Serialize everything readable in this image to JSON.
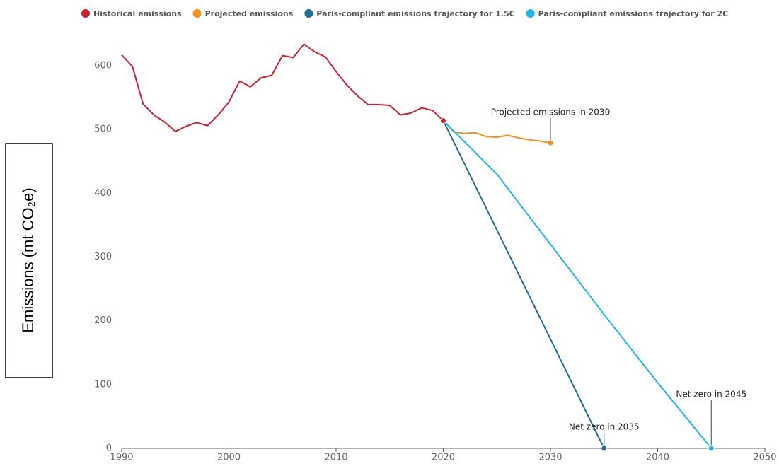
{
  "chart_data": {
    "type": "line",
    "y_label": "Emissions (mt CO₂e)",
    "xlim": [
      1990,
      2050
    ],
    "xticks": [
      1990,
      2000,
      2010,
      2020,
      2030,
      2040,
      2050
    ],
    "ylim": [
      0,
      640
    ],
    "yticks": [
      0,
      100,
      200,
      300,
      400,
      500,
      600
    ],
    "grid": false,
    "legend": "top",
    "series": [
      {
        "name": "Historical emissions",
        "color": "#d0202e",
        "x": [
          1990,
          1991,
          1992,
          1993,
          1994,
          1995,
          1996,
          1997,
          1998,
          1999,
          2000,
          2001,
          2002,
          2003,
          2004,
          2005,
          2006,
          2007,
          2008,
          2009,
          2010,
          2011,
          2012,
          2013,
          2014,
          2015,
          2016,
          2017,
          2018,
          2019,
          2020
        ],
        "values": [
          617,
          599,
          540,
          523,
          512,
          497,
          505,
          511,
          506,
          523,
          543,
          576,
          567,
          581,
          585,
          616,
          613,
          634,
          622,
          614,
          591,
          570,
          553,
          539,
          539,
          538,
          523,
          526,
          534,
          530,
          514
        ]
      },
      {
        "name": "Projected emissions",
        "color": "#f7901e",
        "x": [
          2020,
          2021,
          2022,
          2023,
          2024,
          2025,
          2026,
          2027,
          2028,
          2029,
          2030
        ],
        "values": [
          514,
          496,
          494,
          495,
          489,
          488,
          491,
          487,
          484,
          482,
          479
        ]
      },
      {
        "name": "Paris-compliant emissions trajectory for 1.5C",
        "color": "#1f6e9c",
        "x": [
          2020,
          2035
        ],
        "values": [
          514,
          0
        ]
      },
      {
        "name": "Paris-compliant emissions trajectory for 2C",
        "color": "#1fb4f0",
        "x": [
          2020,
          2025,
          2030,
          2035,
          2040,
          2045
        ],
        "values": [
          514,
          430,
          320,
          210,
          103,
          0
        ]
      }
    ],
    "annotations": [
      {
        "text": "Projected emissions in 2030",
        "x": 2030,
        "y": 479
      },
      {
        "text": "Net zero in 2035",
        "x": 2035,
        "y": 0
      },
      {
        "text": "Net zero in 2045",
        "x": 2045,
        "y": 0
      }
    ]
  }
}
